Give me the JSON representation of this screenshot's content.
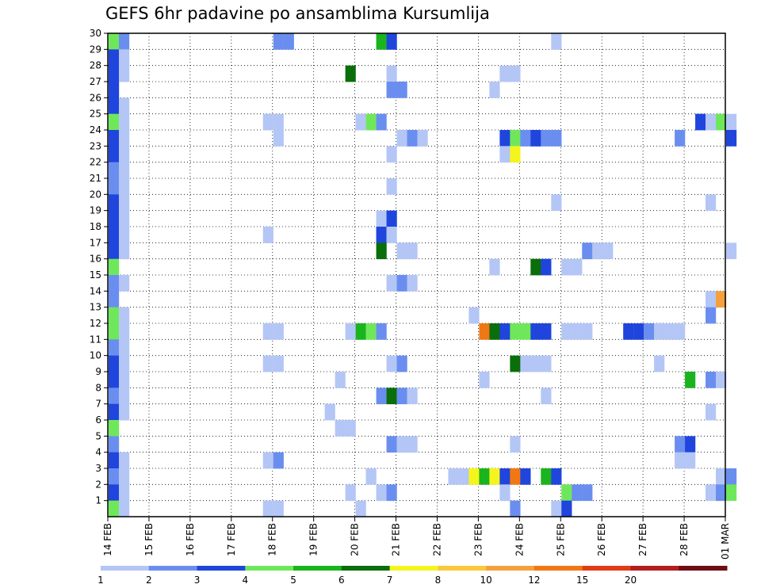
{
  "chart_data": {
    "type": "heatmap",
    "title": "GEFS 6hr padavine po ansamblima Kursumlija",
    "xlabel": "",
    "ylabel": "",
    "y_range": [
      0,
      30
    ],
    "y_ticks": [
      "1",
      "2",
      "3",
      "4",
      "5",
      "6",
      "7",
      "8",
      "9",
      "10",
      "11",
      "12",
      "13",
      "14",
      "15",
      "16",
      "17",
      "18",
      "19",
      "20",
      "21",
      "22",
      "23",
      "24",
      "25",
      "26",
      "27",
      "28",
      "29",
      "30"
    ],
    "x_range": [
      0,
      60
    ],
    "x_ticks": [
      {
        "x": 0,
        "label": "14 FEB"
      },
      {
        "x": 4,
        "label": "15 FEB"
      },
      {
        "x": 8,
        "label": "16 FEB"
      },
      {
        "x": 12,
        "label": "17 FEB"
      },
      {
        "x": 16,
        "label": "18 FEB"
      },
      {
        "x": 20,
        "label": "19 FEB"
      },
      {
        "x": 24,
        "label": "20 FEB"
      },
      {
        "x": 28,
        "label": "21 FEB"
      },
      {
        "x": 32,
        "label": "22 FEB"
      },
      {
        "x": 36,
        "label": "23 FEB"
      },
      {
        "x": 40,
        "label": "24 FEB"
      },
      {
        "x": 44,
        "label": "25 FEB"
      },
      {
        "x": 48,
        "label": "26 FEB"
      },
      {
        "x": 52,
        "label": "27 FEB"
      },
      {
        "x": 56,
        "label": "28 FEB"
      },
      {
        "x": 60,
        "label": "01 MAR"
      }
    ],
    "grid": true,
    "legend": "bottom colorbar",
    "colorbar": {
      "labels": [
        "1",
        "2",
        "3",
        "4",
        "5",
        "6",
        "7",
        "8",
        "10",
        "12",
        "15",
        "20"
      ],
      "colors": [
        "#b4c6f5",
        "#6a8ef0",
        "#1f45dc",
        "#6ee85a",
        "#1ab41e",
        "#0a6e0a",
        "#f5f51e",
        "#fac83c",
        "#f5a03c",
        "#f07814",
        "#e13c14",
        "#b41e1e",
        "#6e0f14"
      ]
    },
    "cells": [
      {
        "x": 0,
        "y": 30,
        "v": 4
      },
      {
        "x": 1,
        "y": 30,
        "v": 2
      },
      {
        "x": 16,
        "y": 30,
        "v": 2
      },
      {
        "x": 17,
        "y": 30,
        "v": 2
      },
      {
        "x": 26,
        "y": 30,
        "v": 5
      },
      {
        "x": 27,
        "y": 30,
        "v": 3
      },
      {
        "x": 43,
        "y": 30,
        "v": 1
      },
      {
        "x": 0,
        "y": 29,
        "v": 3
      },
      {
        "x": 1,
        "y": 29,
        "v": 1
      },
      {
        "x": 0,
        "y": 28,
        "v": 3
      },
      {
        "x": 1,
        "y": 28,
        "v": 1
      },
      {
        "x": 23,
        "y": 28,
        "v": 6
      },
      {
        "x": 27,
        "y": 28,
        "v": 1
      },
      {
        "x": 38,
        "y": 28,
        "v": 1
      },
      {
        "x": 39,
        "y": 28,
        "v": 1
      },
      {
        "x": 0,
        "y": 27,
        "v": 3
      },
      {
        "x": 27,
        "y": 27,
        "v": 2
      },
      {
        "x": 28,
        "y": 27,
        "v": 2
      },
      {
        "x": 37,
        "y": 27,
        "v": 1
      },
      {
        "x": 0,
        "y": 26,
        "v": 3
      },
      {
        "x": 1,
        "y": 26,
        "v": 1
      },
      {
        "x": 0,
        "y": 25,
        "v": 4
      },
      {
        "x": 1,
        "y": 25,
        "v": 1
      },
      {
        "x": 15,
        "y": 25,
        "v": 1
      },
      {
        "x": 16,
        "y": 25,
        "v": 1
      },
      {
        "x": 24,
        "y": 25,
        "v": 1
      },
      {
        "x": 25,
        "y": 25,
        "v": 4
      },
      {
        "x": 26,
        "y": 25,
        "v": 2
      },
      {
        "x": 57,
        "y": 25,
        "v": 3
      },
      {
        "x": 58,
        "y": 25,
        "v": 1
      },
      {
        "x": 59,
        "y": 25,
        "v": 4
      },
      {
        "x": 60,
        "y": 25,
        "v": 1
      },
      {
        "x": 0,
        "y": 24,
        "v": 3
      },
      {
        "x": 1,
        "y": 24,
        "v": 1
      },
      {
        "x": 16,
        "y": 24,
        "v": 1
      },
      {
        "x": 28,
        "y": 24,
        "v": 1
      },
      {
        "x": 29,
        "y": 24,
        "v": 2
      },
      {
        "x": 30,
        "y": 24,
        "v": 1
      },
      {
        "x": 38,
        "y": 24,
        "v": 3
      },
      {
        "x": 39,
        "y": 24,
        "v": 4
      },
      {
        "x": 40,
        "y": 24,
        "v": 2
      },
      {
        "x": 41,
        "y": 24,
        "v": 3
      },
      {
        "x": 42,
        "y": 24,
        "v": 2
      },
      {
        "x": 43,
        "y": 24,
        "v": 2
      },
      {
        "x": 55,
        "y": 24,
        "v": 2
      },
      {
        "x": 60,
        "y": 24,
        "v": 3
      },
      {
        "x": 0,
        "y": 23,
        "v": 3
      },
      {
        "x": 1,
        "y": 23,
        "v": 1
      },
      {
        "x": 27,
        "y": 23,
        "v": 1
      },
      {
        "x": 38,
        "y": 23,
        "v": 1
      },
      {
        "x": 39,
        "y": 23,
        "v": 7
      },
      {
        "x": 0,
        "y": 22,
        "v": 2
      },
      {
        "x": 1,
        "y": 22,
        "v": 1
      },
      {
        "x": 0,
        "y": 21,
        "v": 2
      },
      {
        "x": 1,
        "y": 21,
        "v": 1
      },
      {
        "x": 27,
        "y": 21,
        "v": 1
      },
      {
        "x": 0,
        "y": 20,
        "v": 3
      },
      {
        "x": 1,
        "y": 20,
        "v": 1
      },
      {
        "x": 43,
        "y": 20,
        "v": 1
      },
      {
        "x": 58,
        "y": 20,
        "v": 1
      },
      {
        "x": 0,
        "y": 19,
        "v": 3
      },
      {
        "x": 1,
        "y": 19,
        "v": 1
      },
      {
        "x": 26,
        "y": 19,
        "v": 1
      },
      {
        "x": 27,
        "y": 19,
        "v": 3
      },
      {
        "x": 0,
        "y": 18,
        "v": 3
      },
      {
        "x": 1,
        "y": 18,
        "v": 1
      },
      {
        "x": 15,
        "y": 18,
        "v": 1
      },
      {
        "x": 26,
        "y": 18,
        "v": 3
      },
      {
        "x": 27,
        "y": 18,
        "v": 1
      },
      {
        "x": 0,
        "y": 17,
        "v": 3
      },
      {
        "x": 1,
        "y": 17,
        "v": 1
      },
      {
        "x": 26,
        "y": 17,
        "v": 6
      },
      {
        "x": 28,
        "y": 17,
        "v": 1
      },
      {
        "x": 29,
        "y": 17,
        "v": 1
      },
      {
        "x": 46,
        "y": 17,
        "v": 2
      },
      {
        "x": 47,
        "y": 17,
        "v": 1
      },
      {
        "x": 48,
        "y": 17,
        "v": 1
      },
      {
        "x": 60,
        "y": 17,
        "v": 1
      },
      {
        "x": 0,
        "y": 16,
        "v": 4
      },
      {
        "x": 37,
        "y": 16,
        "v": 1
      },
      {
        "x": 41,
        "y": 16,
        "v": 6
      },
      {
        "x": 42,
        "y": 16,
        "v": 3
      },
      {
        "x": 44,
        "y": 16,
        "v": 1
      },
      {
        "x": 45,
        "y": 16,
        "v": 1
      },
      {
        "x": 0,
        "y": 15,
        "v": 2
      },
      {
        "x": 1,
        "y": 15,
        "v": 1
      },
      {
        "x": 27,
        "y": 15,
        "v": 1
      },
      {
        "x": 28,
        "y": 15,
        "v": 2
      },
      {
        "x": 29,
        "y": 15,
        "v": 1
      },
      {
        "x": 0,
        "y": 14,
        "v": 2
      },
      {
        "x": 58,
        "y": 14,
        "v": 1
      },
      {
        "x": 59,
        "y": 14,
        "v": 9
      },
      {
        "x": 0,
        "y": 13,
        "v": 4
      },
      {
        "x": 1,
        "y": 13,
        "v": 1
      },
      {
        "x": 35,
        "y": 13,
        "v": 1
      },
      {
        "x": 58,
        "y": 13,
        "v": 2
      },
      {
        "x": 0,
        "y": 12,
        "v": 4
      },
      {
        "x": 1,
        "y": 12,
        "v": 1
      },
      {
        "x": 15,
        "y": 12,
        "v": 1
      },
      {
        "x": 16,
        "y": 12,
        "v": 1
      },
      {
        "x": 23,
        "y": 12,
        "v": 1
      },
      {
        "x": 24,
        "y": 12,
        "v": 5
      },
      {
        "x": 25,
        "y": 12,
        "v": 4
      },
      {
        "x": 26,
        "y": 12,
        "v": 2
      },
      {
        "x": 36,
        "y": 12,
        "v": 10
      },
      {
        "x": 37,
        "y": 12,
        "v": 6
      },
      {
        "x": 38,
        "y": 12,
        "v": 3
      },
      {
        "x": 39,
        "y": 12,
        "v": 4
      },
      {
        "x": 40,
        "y": 12,
        "v": 4
      },
      {
        "x": 41,
        "y": 12,
        "v": 3
      },
      {
        "x": 42,
        "y": 12,
        "v": 3
      },
      {
        "x": 44,
        "y": 12,
        "v": 1
      },
      {
        "x": 45,
        "y": 12,
        "v": 1
      },
      {
        "x": 46,
        "y": 12,
        "v": 1
      },
      {
        "x": 50,
        "y": 12,
        "v": 3
      },
      {
        "x": 51,
        "y": 12,
        "v": 3
      },
      {
        "x": 52,
        "y": 12,
        "v": 2
      },
      {
        "x": 53,
        "y": 12,
        "v": 1
      },
      {
        "x": 54,
        "y": 12,
        "v": 1
      },
      {
        "x": 55,
        "y": 12,
        "v": 1
      },
      {
        "x": 0,
        "y": 11,
        "v": 2
      },
      {
        "x": 1,
        "y": 11,
        "v": 1
      },
      {
        "x": 0,
        "y": 10,
        "v": 3
      },
      {
        "x": 1,
        "y": 10,
        "v": 1
      },
      {
        "x": 15,
        "y": 10,
        "v": 1
      },
      {
        "x": 16,
        "y": 10,
        "v": 1
      },
      {
        "x": 27,
        "y": 10,
        "v": 1
      },
      {
        "x": 28,
        "y": 10,
        "v": 2
      },
      {
        "x": 39,
        "y": 10,
        "v": 6
      },
      {
        "x": 40,
        "y": 10,
        "v": 1
      },
      {
        "x": 41,
        "y": 10,
        "v": 1
      },
      {
        "x": 42,
        "y": 10,
        "v": 1
      },
      {
        "x": 53,
        "y": 10,
        "v": 1
      },
      {
        "x": 0,
        "y": 9,
        "v": 3
      },
      {
        "x": 1,
        "y": 9,
        "v": 1
      },
      {
        "x": 22,
        "y": 9,
        "v": 1
      },
      {
        "x": 36,
        "y": 9,
        "v": 1
      },
      {
        "x": 56,
        "y": 9,
        "v": 5
      },
      {
        "x": 58,
        "y": 9,
        "v": 2
      },
      {
        "x": 59,
        "y": 9,
        "v": 1
      },
      {
        "x": 0,
        "y": 8,
        "v": 2
      },
      {
        "x": 1,
        "y": 8,
        "v": 1
      },
      {
        "x": 26,
        "y": 8,
        "v": 2
      },
      {
        "x": 27,
        "y": 8,
        "v": 6
      },
      {
        "x": 28,
        "y": 8,
        "v": 2
      },
      {
        "x": 29,
        "y": 8,
        "v": 1
      },
      {
        "x": 42,
        "y": 8,
        "v": 1
      },
      {
        "x": 0,
        "y": 7,
        "v": 3
      },
      {
        "x": 1,
        "y": 7,
        "v": 1
      },
      {
        "x": 21,
        "y": 7,
        "v": 1
      },
      {
        "x": 58,
        "y": 7,
        "v": 1
      },
      {
        "x": 0,
        "y": 6,
        "v": 4
      },
      {
        "x": 22,
        "y": 6,
        "v": 1
      },
      {
        "x": 23,
        "y": 6,
        "v": 1
      },
      {
        "x": 0,
        "y": 5,
        "v": 2
      },
      {
        "x": 27,
        "y": 5,
        "v": 2
      },
      {
        "x": 28,
        "y": 5,
        "v": 1
      },
      {
        "x": 29,
        "y": 5,
        "v": 1
      },
      {
        "x": 39,
        "y": 5,
        "v": 1
      },
      {
        "x": 55,
        "y": 5,
        "v": 2
      },
      {
        "x": 56,
        "y": 5,
        "v": 3
      },
      {
        "x": 0,
        "y": 4,
        "v": 3
      },
      {
        "x": 1,
        "y": 4,
        "v": 1
      },
      {
        "x": 15,
        "y": 4,
        "v": 1
      },
      {
        "x": 16,
        "y": 4,
        "v": 2
      },
      {
        "x": 55,
        "y": 4,
        "v": 1
      },
      {
        "x": 56,
        "y": 4,
        "v": 1
      },
      {
        "x": 0,
        "y": 3,
        "v": 2
      },
      {
        "x": 1,
        "y": 3,
        "v": 1
      },
      {
        "x": 25,
        "y": 3,
        "v": 1
      },
      {
        "x": 33,
        "y": 3,
        "v": 1
      },
      {
        "x": 34,
        "y": 3,
        "v": 1
      },
      {
        "x": 35,
        "y": 3,
        "v": 7
      },
      {
        "x": 36,
        "y": 3,
        "v": 5
      },
      {
        "x": 37,
        "y": 3,
        "v": 7
      },
      {
        "x": 38,
        "y": 3,
        "v": 3
      },
      {
        "x": 39,
        "y": 3,
        "v": 10
      },
      {
        "x": 40,
        "y": 3,
        "v": 3
      },
      {
        "x": 42,
        "y": 3,
        "v": 5
      },
      {
        "x": 43,
        "y": 3,
        "v": 3
      },
      {
        "x": 59,
        "y": 3,
        "v": 1
      },
      {
        "x": 60,
        "y": 3,
        "v": 2
      },
      {
        "x": 0,
        "y": 2,
        "v": 3
      },
      {
        "x": 1,
        "y": 2,
        "v": 1
      },
      {
        "x": 23,
        "y": 2,
        "v": 1
      },
      {
        "x": 26,
        "y": 2,
        "v": 1
      },
      {
        "x": 27,
        "y": 2,
        "v": 2
      },
      {
        "x": 38,
        "y": 2,
        "v": 1
      },
      {
        "x": 44,
        "y": 2,
        "v": 4
      },
      {
        "x": 45,
        "y": 2,
        "v": 2
      },
      {
        "x": 46,
        "y": 2,
        "v": 2
      },
      {
        "x": 58,
        "y": 2,
        "v": 1
      },
      {
        "x": 59,
        "y": 2,
        "v": 2
      },
      {
        "x": 60,
        "y": 2,
        "v": 4
      },
      {
        "x": 0,
        "y": 1,
        "v": 4
      },
      {
        "x": 1,
        "y": 1,
        "v": 1
      },
      {
        "x": 15,
        "y": 1,
        "v": 1
      },
      {
        "x": 16,
        "y": 1,
        "v": 1
      },
      {
        "x": 24,
        "y": 1,
        "v": 1
      },
      {
        "x": 39,
        "y": 1,
        "v": 2
      },
      {
        "x": 43,
        "y": 1,
        "v": 1
      },
      {
        "x": 44,
        "y": 1,
        "v": 3
      }
    ]
  }
}
